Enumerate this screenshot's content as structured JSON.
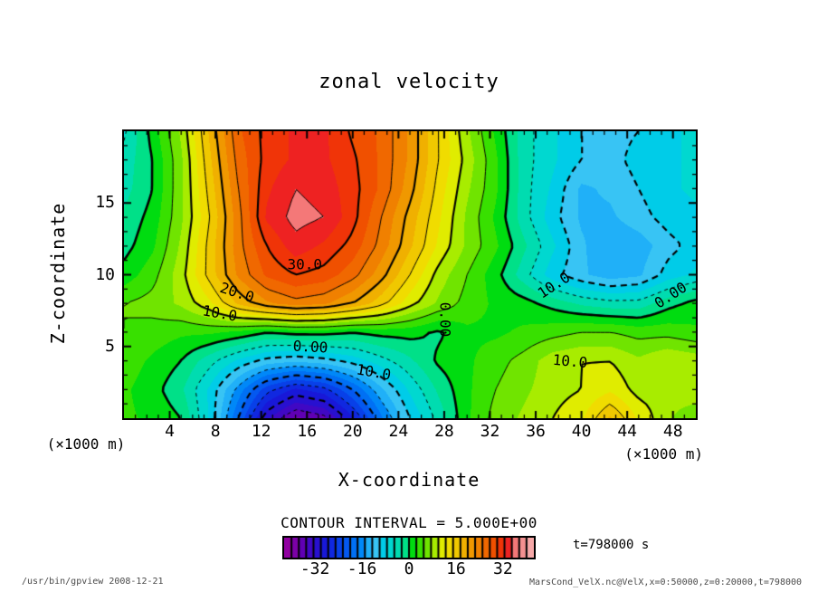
{
  "x_axis": {
    "label": "X-coordinate",
    "unit": "(×1000 m)",
    "ticks": [
      4,
      8,
      12,
      16,
      20,
      24,
      28,
      32,
      36,
      40,
      44,
      48
    ]
  },
  "y_axis": {
    "label": "Z-coordinate",
    "unit": "(×1000 m)",
    "ticks": [
      5,
      10,
      15
    ]
  },
  "legend": {
    "contour_interval_text": "CONTOUR INTERVAL = 5.000E+00",
    "ticks": [
      -32,
      -16,
      0,
      16,
      32
    ],
    "time_text": "t=798000 s"
  },
  "footer": {
    "left": "/usr/bin/gpview  2008-12-21",
    "right": "MarsCond_VelX.nc@VelX,x=0:50000,z=0:20000,t=798000"
  },
  "chart_data": {
    "type": "heatmap",
    "title": "zonal velocity",
    "xlabel": "X-coordinate",
    "ylabel": "Z-coordinate",
    "x_range": [
      0,
      50
    ],
    "z_range": [
      0,
      20
    ],
    "contour_interval": 5.0,
    "levels": [
      -35,
      -30,
      -25,
      -20,
      -15,
      -10,
      -5,
      0,
      5,
      10,
      15,
      20,
      25,
      30,
      35
    ],
    "x": [
      0,
      2.5,
      5,
      7.5,
      10,
      12.5,
      15,
      17.5,
      20,
      22.5,
      25,
      27.5,
      30,
      32.5,
      35,
      37.5,
      40,
      42.5,
      45,
      47.5,
      50
    ],
    "z": [
      0,
      2,
      4,
      6,
      8,
      10,
      12,
      14,
      16,
      18,
      20
    ],
    "values": [
      [
        3,
        2,
        0,
        -8,
        -20,
        -32,
        -38,
        -36,
        -28,
        -18,
        -10,
        -4,
        2,
        6,
        8,
        10,
        12,
        18,
        12,
        8,
        5
      ],
      [
        3,
        1,
        -2,
        -8,
        -16,
        -24,
        -28,
        -26,
        -20,
        -13,
        -7,
        -2,
        2,
        5,
        7,
        9,
        10,
        12,
        9,
        9,
        10
      ],
      [
        4,
        2,
        0,
        -4,
        -8,
        -11,
        -12,
        -11,
        -9,
        -6,
        -3,
        0.5,
        2,
        4,
        6,
        9,
        10,
        10,
        8,
        10,
        9
      ],
      [
        5,
        4,
        3,
        3,
        2,
        0.2,
        1,
        1,
        0.2,
        1,
        1,
        -0.5,
        2,
        2,
        3,
        4,
        5,
        5,
        4,
        4,
        3
      ],
      [
        5,
        6,
        8,
        12,
        18,
        22,
        24,
        23,
        20,
        16,
        11,
        7,
        4,
        2,
        1,
        -1,
        -3,
        -4,
        -4,
        -1,
        1
      ],
      [
        1,
        4,
        9,
        16,
        23,
        28,
        30,
        29,
        26,
        21,
        15,
        9,
        5,
        1,
        -4,
        -9,
        -12,
        -14,
        -13,
        -9,
        -7
      ],
      [
        -1,
        2,
        8,
        16,
        24,
        30,
        34,
        32,
        29,
        24,
        18,
        12,
        7,
        3,
        -2,
        -7,
        -12,
        -15,
        -14,
        -11,
        -9
      ],
      [
        -2,
        1,
        7,
        15,
        24,
        33,
        36,
        35,
        31,
        25,
        19,
        13,
        7,
        2,
        -4,
        -9,
        -13,
        -13,
        -11,
        -9,
        -8
      ],
      [
        -3.5,
        0,
        7,
        16,
        25,
        32,
        35,
        34,
        31,
        27,
        21,
        14,
        8,
        3,
        -4,
        -8,
        -13,
        -12,
        -10,
        -8,
        -7
      ],
      [
        -4,
        0,
        7,
        17,
        26,
        31,
        33,
        33,
        30.5,
        27,
        22,
        15,
        9,
        3,
        -4,
        -7,
        -10,
        -11,
        -9,
        -8,
        -7
      ],
      [
        -5.5,
        1,
        8,
        18,
        27,
        31,
        33,
        33,
        29.5,
        27,
        22,
        15,
        8,
        2,
        -4,
        -7,
        -10,
        -11,
        -10,
        -8,
        -7
      ]
    ],
    "palette_range": [
      -42.5,
      42.5
    ],
    "palette_step": 2.5,
    "palette": [
      "#9000A0",
      "#7C00A8",
      "#6000B4",
      "#4008C4",
      "#2810D0",
      "#1818D8",
      "#1028E0",
      "#0840E8",
      "#0458F0",
      "#0070F4",
      "#0088F8",
      "#20B0F8",
      "#38C4F4",
      "#00CCE8",
      "#00D8D0",
      "#00DCB0",
      "#00E088",
      "#00DC10",
      "#38E000",
      "#70E400",
      "#A8EC00",
      "#E0EC00",
      "#F0DC00",
      "#F0C800",
      "#F0B000",
      "#F09800",
      "#F08000",
      "#F06800",
      "#F05000",
      "#F03408",
      "#EE2222",
      "#F47878",
      "#F49090",
      "#F6A8A8"
    ],
    "contour_labels": [
      {
        "text": "30.0",
        "x": 15.8,
        "z": 10.7,
        "rot": 0
      },
      {
        "text": "20.0",
        "x": 9.9,
        "z": 8.8,
        "rot": 18
      },
      {
        "text": "10.0",
        "x": 8.4,
        "z": 7.3,
        "rot": 10
      },
      {
        "text": "0.00",
        "x": 16.3,
        "z": 5.0,
        "rot": 3
      },
      {
        "text": "10.0",
        "x": 21.8,
        "z": 3.2,
        "rot": 10
      },
      {
        "text": "10.0",
        "x": 37.6,
        "z": 9.3,
        "rot": -33
      },
      {
        "text": "0.00",
        "x": 47.8,
        "z": 8.6,
        "rot": -33
      },
      {
        "text": "0.00",
        "x": 28.1,
        "z": 6.9,
        "rot": 90
      },
      {
        "text": "10.0",
        "x": 39.0,
        "z": 4.0,
        "rot": 5
      }
    ]
  }
}
